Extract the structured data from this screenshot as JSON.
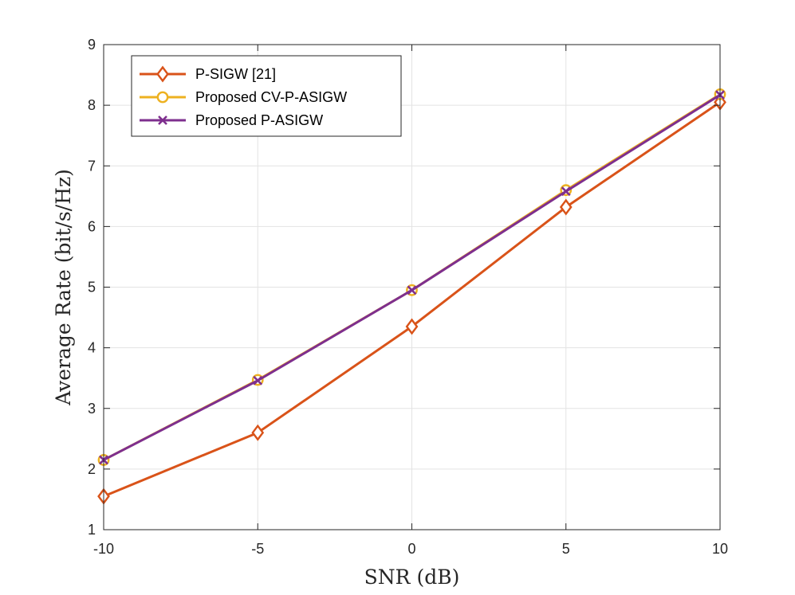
{
  "chart_data": {
    "type": "line",
    "xlabel": "SNR (dB)",
    "ylabel": "Average Rate (bit/s/Hz)",
    "title": "",
    "xlim": [
      -10,
      10
    ],
    "ylim": [
      1,
      9
    ],
    "x_ticks": [
      -10,
      -5,
      0,
      5,
      10
    ],
    "y_ticks": [
      1,
      2,
      3,
      4,
      5,
      6,
      7,
      8,
      9
    ],
    "grid": true,
    "legend_position": "top-left",
    "x": [
      -10,
      -5,
      0,
      5,
      10
    ],
    "series": [
      {
        "name": "P-SIGW [21]",
        "values": [
          1.55,
          2.6,
          4.35,
          6.32,
          8.05
        ],
        "color": "#D95319",
        "marker": "diamond"
      },
      {
        "name": "Proposed CV-P-ASIGW",
        "values": [
          2.15,
          3.47,
          4.95,
          6.6,
          8.18
        ],
        "color": "#EDB120",
        "marker": "circle"
      },
      {
        "name": "Proposed P-ASIGW",
        "values": [
          2.15,
          3.46,
          4.95,
          6.58,
          8.17
        ],
        "color": "#7E2F8E",
        "marker": "x"
      }
    ]
  }
}
